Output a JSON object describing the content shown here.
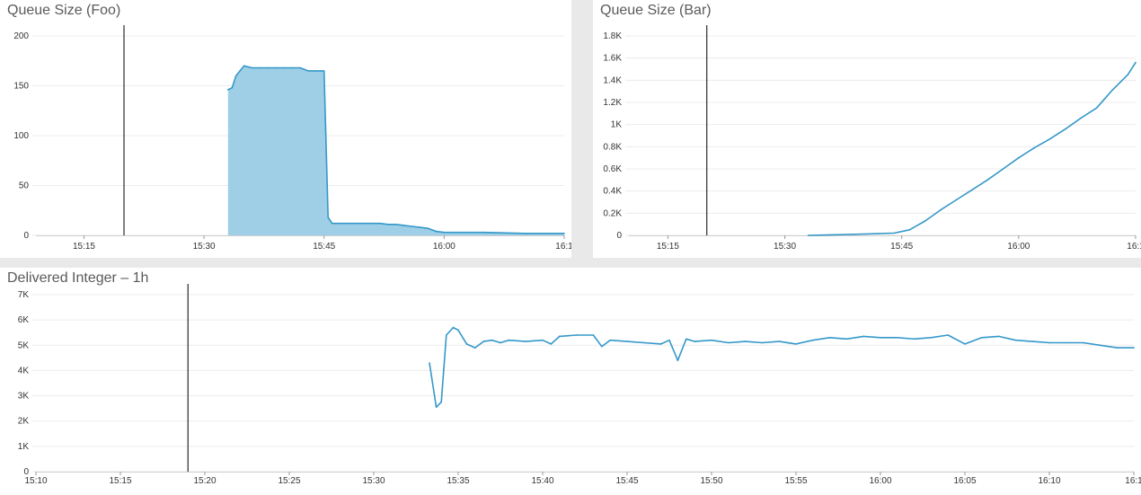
{
  "panels": {
    "foo": {
      "title": "Queue Size (Foo)"
    },
    "bar": {
      "title": "Queue Size (Bar)"
    },
    "delivered": {
      "title": "Delivered Integer – 1h"
    }
  },
  "colors": {
    "series": "#3498c9",
    "fill": "#9fcfe6",
    "grid": "#ececec",
    "marker": "#000000"
  },
  "chart_data": [
    {
      "type": "area",
      "title": "Queue Size (Foo)",
      "xticks": [
        "15:15",
        "15:30",
        "15:45",
        "16:00",
        "16:1"
      ],
      "xlim": [
        "15:09",
        "16:15"
      ],
      "yticks": [
        "0",
        "50",
        "100",
        "150",
        "200"
      ],
      "ylim": [
        0,
        200
      ],
      "marker_line": "15:20",
      "x": [
        "15:33",
        "15:33.5",
        "15:34",
        "15:35",
        "15:36",
        "15:37",
        "15:38",
        "15:39",
        "15:40",
        "15:41",
        "15:42",
        "15:43",
        "15:44",
        "15:45",
        "15:45.5",
        "15:46",
        "15:47",
        "15:48",
        "15:49",
        "15:50",
        "15:51",
        "15:52",
        "15:53",
        "15:54",
        "15:55",
        "15:56",
        "15:57",
        "15:58",
        "15:59",
        "16:00",
        "16:05",
        "16:10",
        "16:15"
      ],
      "values": [
        146,
        148,
        160,
        170,
        168,
        168,
        168,
        168,
        168,
        168,
        168,
        165,
        165,
        165,
        18,
        12,
        12,
        12,
        12,
        12,
        12,
        12,
        11,
        11,
        10,
        9,
        8,
        7,
        4,
        3,
        3,
        2,
        2
      ]
    },
    {
      "type": "line",
      "title": "Queue Size (Bar)",
      "xticks": [
        "15:15",
        "15:30",
        "15:45",
        "16:00",
        "16:1"
      ],
      "xlim": [
        "15:10",
        "16:15"
      ],
      "yticks": [
        "0",
        "0.2K",
        "0.4K",
        "0.6K",
        "0.8K",
        "1K",
        "1.2K",
        "1.4K",
        "1.6K",
        "1.8K"
      ],
      "ylim": [
        0,
        1800
      ],
      "marker_line": "15:20",
      "x": [
        "15:33",
        "15:36",
        "15:39",
        "15:42",
        "15:44",
        "15:46",
        "15:48",
        "15:50",
        "15:52",
        "15:54",
        "15:56",
        "15:58",
        "16:00",
        "16:02",
        "16:04",
        "16:06",
        "16:08",
        "16:10",
        "16:11",
        "16:12",
        "16:13",
        "16:14",
        "16:15"
      ],
      "values": [
        0,
        5,
        10,
        15,
        20,
        50,
        130,
        230,
        320,
        410,
        500,
        600,
        700,
        790,
        870,
        960,
        1060,
        1150,
        1230,
        1310,
        1380,
        1450,
        1560
      ]
    },
    {
      "type": "line",
      "title": "Delivered Integer – 1h",
      "xticks": [
        "15:10",
        "15:15",
        "15:20",
        "15:25",
        "15:30",
        "15:35",
        "15:40",
        "15:45",
        "15:50",
        "15:55",
        "16:00",
        "16:05",
        "16:10",
        "16:1"
      ],
      "xlim": [
        "15:10",
        "16:15"
      ],
      "yticks": [
        "0",
        "1K",
        "2K",
        "3K",
        "4K",
        "5K",
        "6K",
        "7K"
      ],
      "ylim": [
        0,
        7000
      ],
      "marker_line": "15:19",
      "x": [
        "15:33.3",
        "15:33.7",
        "15:34",
        "15:34.3",
        "15:34.7",
        "15:35",
        "15:35.5",
        "15:36",
        "15:36.5",
        "15:37",
        "15:37.5",
        "15:38",
        "15:39",
        "15:40",
        "15:40.5",
        "15:41",
        "15:42",
        "15:43",
        "15:43.5",
        "15:44",
        "15:45",
        "15:46",
        "15:47",
        "15:47.5",
        "15:48",
        "15:48.5",
        "15:49",
        "15:50",
        "15:51",
        "15:52",
        "15:53",
        "15:54",
        "15:55",
        "15:56",
        "15:57",
        "15:58",
        "15:59",
        "16:00",
        "16:01",
        "16:02",
        "16:03",
        "16:04",
        "16:05",
        "16:06",
        "16:07",
        "16:08",
        "16:09",
        "16:10",
        "16:11",
        "16:12",
        "16:13",
        "16:14",
        "16:15"
      ],
      "values": [
        4300,
        2550,
        2750,
        5400,
        5700,
        5600,
        5050,
        4900,
        5150,
        5200,
        5100,
        5200,
        5150,
        5200,
        5050,
        5350,
        5400,
        5400,
        4950,
        5200,
        5150,
        5100,
        5050,
        5200,
        4400,
        5250,
        5150,
        5200,
        5100,
        5150,
        5100,
        5150,
        5050,
        5200,
        5300,
        5250,
        5350,
        5300,
        5300,
        5250,
        5300,
        5400,
        5050,
        5300,
        5350,
        5200,
        5150,
        5100,
        5100,
        5100,
        5000,
        4900,
        4900
      ]
    }
  ]
}
